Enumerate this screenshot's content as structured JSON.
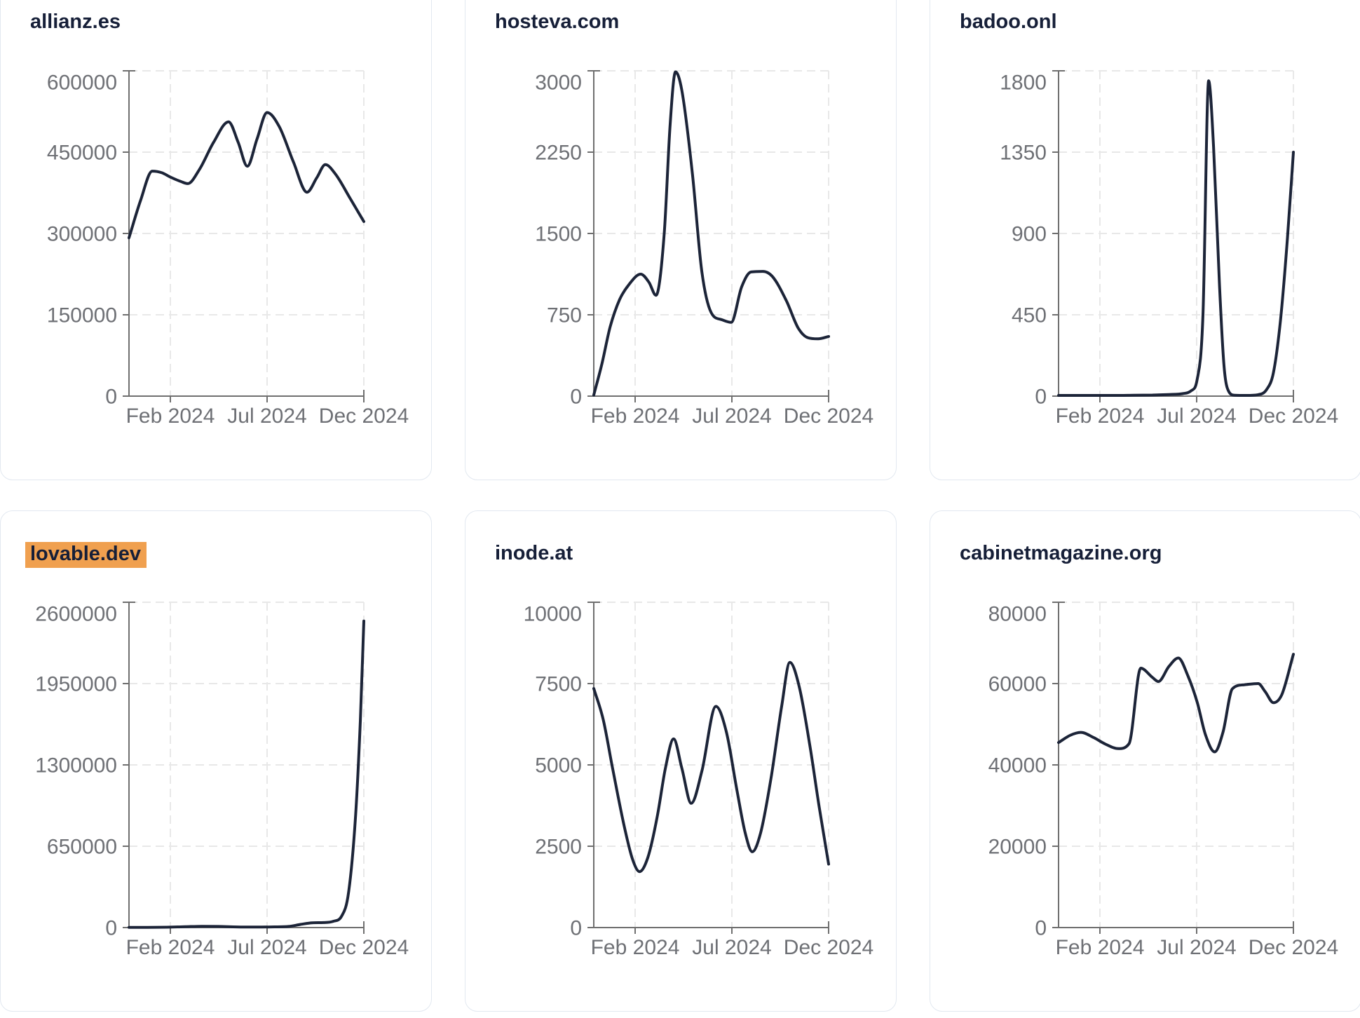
{
  "page": {
    "background": "#ffffff"
  },
  "style": {
    "line_color": "#1c2438",
    "title_color": "#161f38",
    "axis_color": "#6f6f6f",
    "tick_label_color": "#6e7075",
    "grid_color": "#e8e8e8",
    "card_border_color": "#e2e8f0",
    "highlight_color": "#f0a04f"
  },
  "x_tick_labels": [
    "Feb 2024",
    "Jul 2024",
    "Dec 2024"
  ],
  "chart_data": [
    {
      "type": "line",
      "title": "allianz.es",
      "highlighted": false,
      "xlabel": "",
      "ylabel": "",
      "x_tick_labels": [
        "Feb 2024",
        "Jul 2024",
        "Dec 2024"
      ],
      "y_ticks": [
        "0",
        "150000",
        "300000",
        "450000",
        "600000"
      ],
      "y_max": 600000,
      "points": [
        [
          0,
          292000
        ],
        [
          0.05,
          362000
        ],
        [
          0.099,
          415000
        ],
        [
          0.14,
          412000
        ],
        [
          0.176,
          404000
        ],
        [
          0.22,
          396000
        ],
        [
          0.25,
          392000
        ],
        [
          0.3,
          418000
        ],
        [
          0.36,
          468000
        ],
        [
          0.424,
          506000
        ],
        [
          0.465,
          468000
        ],
        [
          0.504,
          424000
        ],
        [
          0.545,
          474000
        ],
        [
          0.588,
          523000
        ],
        [
          0.64,
          497000
        ],
        [
          0.7,
          432000
        ],
        [
          0.758,
          376000
        ],
        [
          0.8,
          403000
        ],
        [
          0.836,
          427000
        ],
        [
          0.88,
          409000
        ],
        [
          0.94,
          366000
        ],
        [
          1,
          322000
        ]
      ]
    },
    {
      "type": "line",
      "title": "hosteva.com",
      "highlighted": false,
      "xlabel": "",
      "ylabel": "",
      "x_tick_labels": [
        "Feb 2024",
        "Jul 2024",
        "Dec 2024"
      ],
      "y_ticks": [
        "0",
        "750",
        "1500",
        "2250",
        "3000"
      ],
      "y_max": 3000,
      "points": [
        [
          0,
          10
        ],
        [
          0.035,
          300
        ],
        [
          0.07,
          640
        ],
        [
          0.11,
          890
        ],
        [
          0.15,
          1030
        ],
        [
          0.2,
          1125
        ],
        [
          0.235,
          1050
        ],
        [
          0.265,
          930
        ],
        [
          0.3,
          1500
        ],
        [
          0.325,
          2500
        ],
        [
          0.348,
          2990
        ],
        [
          0.375,
          2820
        ],
        [
          0.42,
          2050
        ],
        [
          0.46,
          1150
        ],
        [
          0.5,
          770
        ],
        [
          0.545,
          705
        ],
        [
          0.585,
          680
        ],
        [
          0.63,
          1010
        ],
        [
          0.67,
          1145
        ],
        [
          0.72,
          1150
        ],
        [
          0.76,
          1105
        ],
        [
          0.82,
          880
        ],
        [
          0.87,
          630
        ],
        [
          0.91,
          540
        ],
        [
          0.955,
          528
        ],
        [
          1,
          550
        ]
      ]
    },
    {
      "type": "line",
      "title": "badoo.onl",
      "highlighted": false,
      "xlabel": "",
      "ylabel": "",
      "x_tick_labels": [
        "Feb 2024",
        "Jul 2024",
        "Dec 2024"
      ],
      "y_ticks": [
        "0",
        "450",
        "900",
        "1350",
        "1800"
      ],
      "y_max": 1800,
      "points": [
        [
          0,
          4
        ],
        [
          0.08,
          4
        ],
        [
          0.16,
          4
        ],
        [
          0.24,
          4
        ],
        [
          0.32,
          5
        ],
        [
          0.4,
          6
        ],
        [
          0.47,
          9
        ],
        [
          0.53,
          14
        ],
        [
          0.565,
          30
        ],
        [
          0.59,
          90
        ],
        [
          0.615,
          450
        ],
        [
          0.639,
          1745
        ],
        [
          0.66,
          1380
        ],
        [
          0.685,
          620
        ],
        [
          0.705,
          160
        ],
        [
          0.725,
          25
        ],
        [
          0.75,
          5
        ],
        [
          0.8,
          4
        ],
        [
          0.85,
          8
        ],
        [
          0.885,
          35
        ],
        [
          0.915,
          130
        ],
        [
          0.945,
          420
        ],
        [
          0.975,
          880
        ],
        [
          1,
          1350
        ]
      ]
    },
    {
      "type": "line",
      "title": "lovable.dev",
      "highlighted": true,
      "xlabel": "",
      "ylabel": "",
      "x_tick_labels": [
        "Feb 2024",
        "Jul 2024",
        "Dec 2024"
      ],
      "y_ticks": [
        "0",
        "650000",
        "1300000",
        "1950000",
        "2600000"
      ],
      "y_max": 2600000,
      "points": [
        [
          0,
          1500
        ],
        [
          0.08,
          1800
        ],
        [
          0.16,
          3000
        ],
        [
          0.24,
          7000
        ],
        [
          0.31,
          10000
        ],
        [
          0.38,
          9000
        ],
        [
          0.46,
          5000
        ],
        [
          0.54,
          4000
        ],
        [
          0.62,
          5500
        ],
        [
          0.68,
          9000
        ],
        [
          0.73,
          25000
        ],
        [
          0.78,
          38000
        ],
        [
          0.83,
          40000
        ],
        [
          0.87,
          50000
        ],
        [
          0.905,
          90000
        ],
        [
          0.935,
          280000
        ],
        [
          0.965,
          900000
        ],
        [
          0.985,
          1650000
        ],
        [
          1,
          2450000
        ]
      ]
    },
    {
      "type": "line",
      "title": "inode.at",
      "highlighted": false,
      "xlabel": "",
      "ylabel": "",
      "x_tick_labels": [
        "Feb 2024",
        "Jul 2024",
        "Dec 2024"
      ],
      "y_ticks": [
        "0",
        "2500",
        "5000",
        "7500",
        "10000"
      ],
      "y_max": 10000,
      "points": [
        [
          0,
          7350
        ],
        [
          0.04,
          6400
        ],
        [
          0.08,
          4900
        ],
        [
          0.13,
          3100
        ],
        [
          0.165,
          2100
        ],
        [
          0.195,
          1720
        ],
        [
          0.23,
          2150
        ],
        [
          0.27,
          3400
        ],
        [
          0.305,
          4900
        ],
        [
          0.34,
          5800
        ],
        [
          0.375,
          4900
        ],
        [
          0.415,
          3820
        ],
        [
          0.46,
          4800
        ],
        [
          0.52,
          6800
        ],
        [
          0.565,
          6000
        ],
        [
          0.61,
          4200
        ],
        [
          0.645,
          2900
        ],
        [
          0.675,
          2330
        ],
        [
          0.71,
          2900
        ],
        [
          0.755,
          4600
        ],
        [
          0.8,
          6800
        ],
        [
          0.835,
          8150
        ],
        [
          0.875,
          7400
        ],
        [
          0.92,
          5600
        ],
        [
          0.96,
          3700
        ],
        [
          1,
          1950
        ]
      ]
    },
    {
      "type": "line",
      "title": "cabinetmagazine.org",
      "highlighted": false,
      "xlabel": "",
      "ylabel": "",
      "x_tick_labels": [
        "Feb 2024",
        "Jul 2024",
        "Dec 2024"
      ],
      "y_ticks": [
        "0",
        "20000",
        "40000",
        "60000",
        "80000"
      ],
      "y_max": 80000,
      "points": [
        [
          0,
          45500
        ],
        [
          0.05,
          47300
        ],
        [
          0.095,
          48000
        ],
        [
          0.15,
          46700
        ],
        [
          0.2,
          45100
        ],
        [
          0.255,
          44000
        ],
        [
          0.3,
          45200
        ],
        [
          0.35,
          63800
        ],
        [
          0.4,
          61500
        ],
        [
          0.425,
          60500
        ],
        [
          0.47,
          64200
        ],
        [
          0.51,
          66300
        ],
        [
          0.55,
          62000
        ],
        [
          0.59,
          55500
        ],
        [
          0.625,
          47500
        ],
        [
          0.665,
          43200
        ],
        [
          0.7,
          48000
        ],
        [
          0.74,
          58700
        ],
        [
          0.79,
          59700
        ],
        [
          0.85,
          60000
        ],
        [
          0.88,
          58000
        ],
        [
          0.915,
          55300
        ],
        [
          0.95,
          57200
        ],
        [
          1,
          67200
        ]
      ]
    }
  ]
}
